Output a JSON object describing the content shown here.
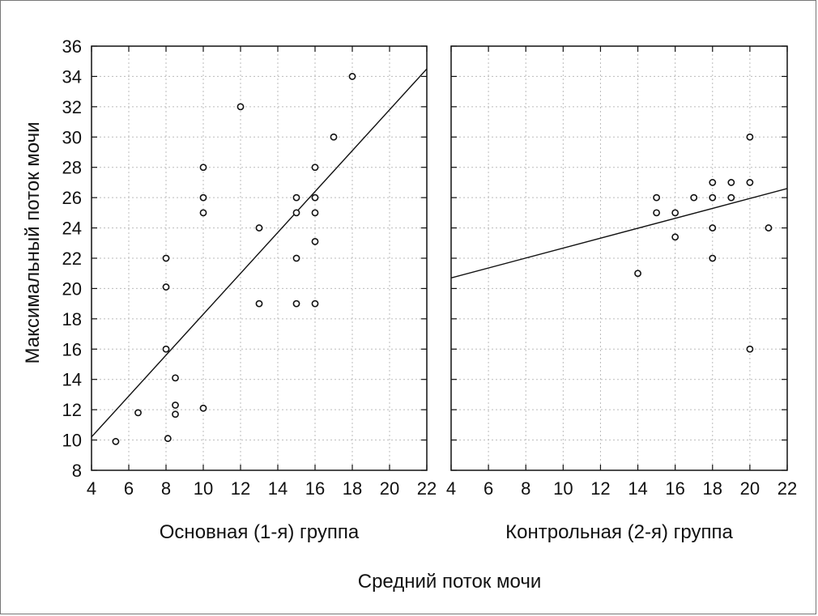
{
  "figure": {
    "ylabel": "Максимальный поток мочи",
    "xlabel": "Средний поток мочи"
  },
  "chart_data": [
    {
      "type": "scatter",
      "title": "Основная (1-я) группа",
      "xlim": [
        4,
        22
      ],
      "ylim": [
        8,
        36
      ],
      "xticks": [
        4,
        6,
        8,
        10,
        12,
        14,
        16,
        18,
        20,
        22
      ],
      "yticks": [
        8,
        10,
        12,
        14,
        16,
        18,
        20,
        22,
        24,
        26,
        28,
        30,
        32,
        34,
        36
      ],
      "grid": true,
      "points": [
        [
          5.3,
          9.9
        ],
        [
          6.5,
          11.8
        ],
        [
          8,
          22
        ],
        [
          8,
          20.1
        ],
        [
          8,
          16
        ],
        [
          8.1,
          10.1
        ],
        [
          8.5,
          14.1
        ],
        [
          8.5,
          12.3
        ],
        [
          8.5,
          11.7
        ],
        [
          10,
          28
        ],
        [
          10,
          26
        ],
        [
          10,
          25
        ],
        [
          10,
          12.1
        ],
        [
          12,
          32
        ],
        [
          13,
          24
        ],
        [
          13,
          19
        ],
        [
          15,
          26
        ],
        [
          15,
          25
        ],
        [
          15,
          22
        ],
        [
          15,
          19
        ],
        [
          16,
          28
        ],
        [
          16,
          26
        ],
        [
          16,
          25
        ],
        [
          16,
          23.1
        ],
        [
          16,
          19
        ],
        [
          17,
          30
        ],
        [
          18,
          34
        ]
      ],
      "trendline": [
        [
          4,
          10.2
        ],
        [
          22,
          34.5
        ]
      ]
    },
    {
      "type": "scatter",
      "title": "Контрольная (2-я) группа",
      "xlim": [
        4,
        22
      ],
      "ylim": [
        8,
        36
      ],
      "xticks": [
        4,
        6,
        8,
        10,
        12,
        14,
        16,
        18,
        20,
        22
      ],
      "yticks": [
        8,
        10,
        12,
        14,
        16,
        18,
        20,
        22,
        24,
        26,
        28,
        30,
        32,
        34,
        36
      ],
      "grid": true,
      "points": [
        [
          14,
          21
        ],
        [
          15,
          26
        ],
        [
          15,
          25
        ],
        [
          16,
          25
        ],
        [
          16,
          23.4
        ],
        [
          17,
          26
        ],
        [
          18,
          27
        ],
        [
          18,
          26
        ],
        [
          18,
          24
        ],
        [
          18,
          22
        ],
        [
          19,
          27
        ],
        [
          19,
          26
        ],
        [
          20,
          30
        ],
        [
          20,
          27
        ],
        [
          20,
          16
        ],
        [
          21,
          24
        ]
      ],
      "trendline": [
        [
          4,
          20.7
        ],
        [
          22,
          26.6
        ]
      ]
    }
  ]
}
